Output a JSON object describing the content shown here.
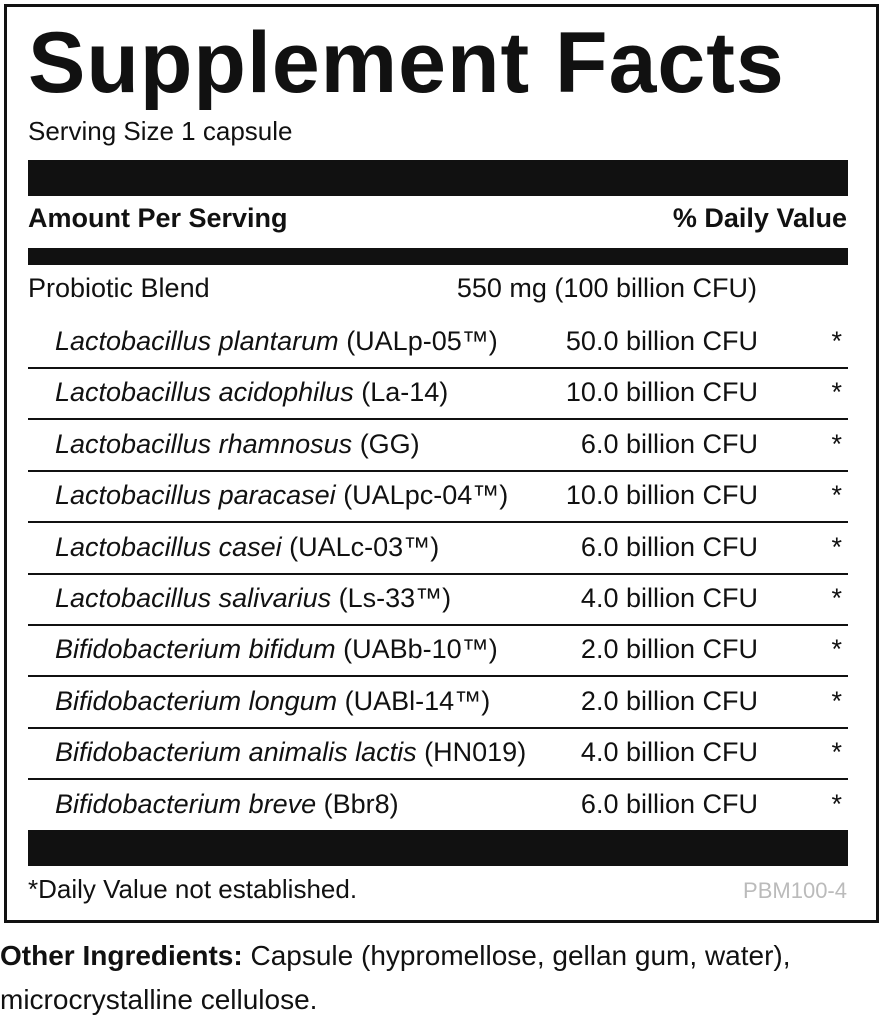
{
  "header": {
    "title": "Supplement Facts",
    "serving_size": "Serving Size 1 capsule"
  },
  "table": {
    "column_headers": [
      "Amount Per Serving",
      "% Daily Value"
    ],
    "blend": {
      "name": "Probiotic Blend",
      "amount": "550 mg (100 billion CFU)"
    },
    "rows": [
      {
        "species": "Lactobacillus plantarum",
        "strain": "(UALp-05™)",
        "amount": "50.0 billion CFU",
        "dv": "*"
      },
      {
        "species": "Lactobacillus acidophilus",
        "strain": "(La-14)",
        "amount": "10.0 billion CFU",
        "dv": "*"
      },
      {
        "species": "Lactobacillus rhamnosus",
        "strain": "(GG)",
        "amount": "6.0 billion CFU",
        "dv": "*"
      },
      {
        "species": "Lactobacillus paracasei",
        "strain": "(UALpc-04™)",
        "amount": "10.0 billion CFU",
        "dv": "*"
      },
      {
        "species": "Lactobacillus casei",
        "strain": "(UALc-03™)",
        "amount": "6.0 billion CFU",
        "dv": "*"
      },
      {
        "species": "Lactobacillus salivarius",
        "strain": "(Ls-33™)",
        "amount": "4.0 billion CFU",
        "dv": "*"
      },
      {
        "species": "Bifidobacterium bifidum",
        "strain": "(UABb-10™)",
        "amount": "2.0 billion CFU",
        "dv": "*"
      },
      {
        "species": "Bifidobacterium longum",
        "strain": "(UABl-14™)",
        "amount": "2.0 billion CFU",
        "dv": "*"
      },
      {
        "species": "Bifidobacterium animalis lactis",
        "strain": "(HN019)",
        "amount": "4.0 billion CFU",
        "dv": "*"
      },
      {
        "species": "Bifidobacterium breve",
        "strain": "(Bbr8)",
        "amount": "6.0 billion CFU",
        "dv": "*"
      }
    ],
    "footnote": "*Daily Value not established.",
    "code": "PBM100-4"
  },
  "other_ingredients": {
    "label": "Other Ingredients:",
    "text": "Capsule (hypromellose, gellan gum, water), microcrystalline cellulose."
  }
}
